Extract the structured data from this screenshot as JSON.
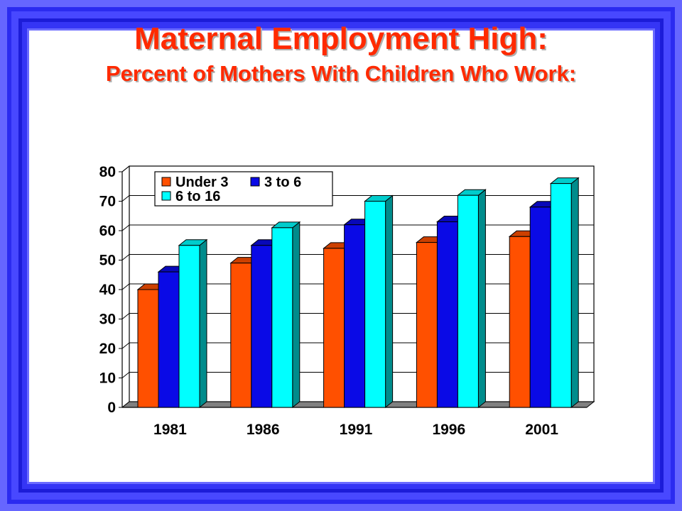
{
  "title": "Maternal Employment High:",
  "subtitle": "Percent of Mothers With Children  Who Work:",
  "colors": {
    "border_outer": "#4848ff",
    "under3": "#ff5000",
    "age3to6": "#0a0ae6",
    "age6to16": "#00ffff"
  },
  "chart_data": {
    "type": "bar",
    "title": "",
    "xlabel": "",
    "ylabel": "",
    "categories": [
      "1981",
      "1986",
      "1991",
      "1996",
      "2001"
    ],
    "series": [
      {
        "name": "Under 3",
        "values": [
          40,
          49,
          54,
          56,
          58
        ]
      },
      {
        "name": "3 to 6",
        "values": [
          46,
          55,
          62,
          63,
          68
        ]
      },
      {
        "name": "6 to 16",
        "values": [
          55,
          61,
          70,
          72,
          76
        ]
      }
    ],
    "ylim": [
      0,
      80
    ],
    "yticks": [
      0,
      10,
      20,
      30,
      40,
      50,
      60,
      70,
      80
    ],
    "grid": true,
    "legend": "top-left",
    "three_d": true
  }
}
